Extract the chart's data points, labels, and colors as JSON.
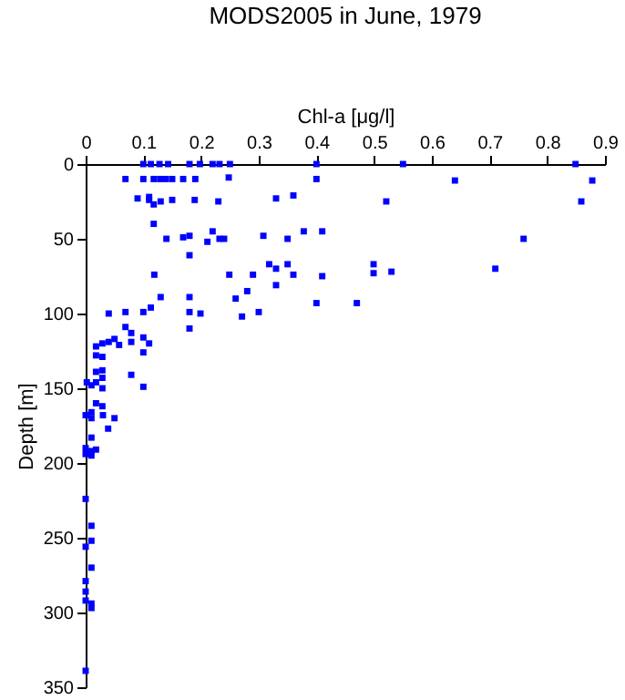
{
  "chart_data": {
    "type": "scatter",
    "title": "MODS2005 in June, 1979",
    "xlabel": "Chl-a [μg/l]",
    "ylabel": "Depth [m]",
    "xlim": [
      0,
      0.9
    ],
    "xticks": [
      0,
      0.1,
      0.2,
      0.3,
      0.4,
      0.5,
      0.6,
      0.7,
      0.8,
      0.9
    ],
    "ylim": [
      350,
      0
    ],
    "yticks": [
      0,
      50,
      100,
      150,
      200,
      250,
      300,
      350
    ],
    "grid": false,
    "marker": "square",
    "series": [
      {
        "color": "#0000ff",
        "x": [
          0.1,
          0.113,
          0.128,
          0.143,
          0.18,
          0.198,
          0.22,
          0.232,
          0.25,
          0.4,
          0.55,
          0.849,
          0.069,
          0.1,
          0.118,
          0.129,
          0.139,
          0.15,
          0.169,
          0.19,
          0.248,
          0.4,
          0.64,
          0.878,
          0.09,
          0.11,
          0.11,
          0.118,
          0.13,
          0.15,
          0.189,
          0.23,
          0.33,
          0.36,
          0.521,
          0.859,
          0.118,
          0.14,
          0.169,
          0.18,
          0.211,
          0.22,
          0.232,
          0.24,
          0.308,
          0.35,
          0.378,
          0.41,
          0.759,
          0.18,
          0.119,
          0.13,
          0.249,
          0.26,
          0.28,
          0.29,
          0.318,
          0.33,
          0.33,
          0.35,
          0.36,
          0.41,
          0.4,
          0.499,
          0.499,
          0.53,
          0.71,
          0.47,
          0.18,
          0.04,
          0.069,
          0.1,
          0.113,
          0.18,
          0.199,
          0.271,
          0.3,
          0.069,
          0.079,
          0.1,
          0.11,
          0.079,
          0.18,
          0.1,
          0.1,
          0.05,
          0.04,
          0.029,
          0.018,
          0.058,
          0.018,
          0.029,
          0.018,
          0.029,
          0.029,
          0.018,
          0.029,
          0.079,
          0.002,
          0.01,
          0.018,
          0.029,
          0.05,
          0.03,
          0.01,
          0.0,
          0.01,
          0.039,
          0.01,
          0.0,
          0.01,
          0.018,
          0.0,
          0.01,
          0.0,
          0.01,
          0.01,
          0.0,
          0.01,
          0.0,
          0.0,
          0.0,
          0.01,
          0.01,
          0.0
        ],
        "values": [
          0,
          0,
          0,
          0,
          0,
          0,
          0,
          0,
          0,
          0,
          0,
          0,
          10,
          10,
          10,
          10,
          10,
          10,
          10,
          10,
          9,
          10,
          11,
          11,
          23,
          22,
          24,
          27,
          25,
          24,
          24,
          25,
          23,
          21,
          25,
          25,
          40,
          50,
          49,
          48,
          52,
          45,
          50,
          50,
          48,
          50,
          45,
          45,
          50,
          61,
          74,
          89,
          74,
          90,
          85,
          74,
          67,
          70,
          81,
          67,
          74,
          75,
          93,
          67,
          73,
          72,
          70,
          93,
          89,
          100,
          99,
          99,
          96,
          99,
          100,
          102,
          99,
          109,
          113,
          116,
          120,
          119,
          110,
          126,
          149,
          117,
          119,
          120,
          122,
          121,
          128,
          129,
          139,
          138,
          143,
          146,
          150,
          141,
          146,
          148,
          160,
          162,
          170,
          168,
          166,
          168,
          170,
          177,
          183,
          190,
          192,
          191,
          194,
          195,
          224,
          242,
          252,
          256,
          270,
          279,
          286,
          292,
          294,
          297,
          339
        ]
      }
    ]
  }
}
